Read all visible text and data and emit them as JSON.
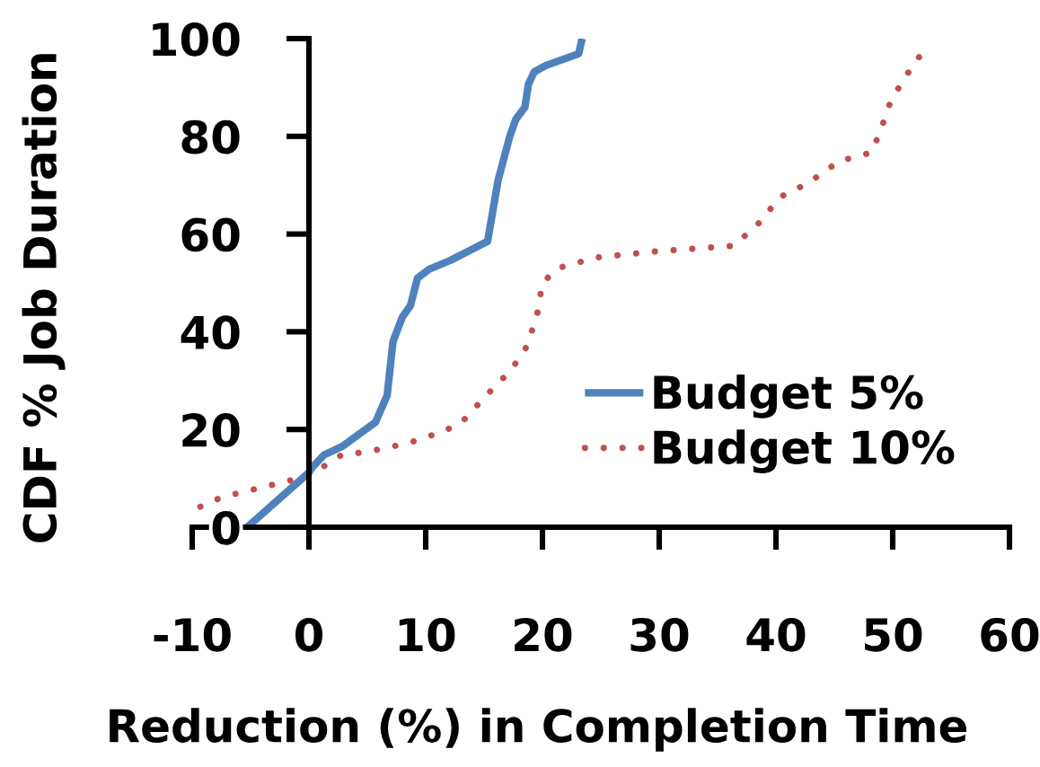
{
  "chart_data": {
    "type": "line",
    "xlabel": "Reduction (%) in Completion Time",
    "ylabel": "CDF % Job Duration",
    "series": [
      {
        "name": "Budget 5%",
        "color": "#4f81bd",
        "line_style": "solid",
        "x": [
          -5.3,
          0,
          0.3,
          1.3,
          2.9,
          5.7,
          6.7,
          7.2,
          8.0,
          8.7,
          9.3,
          10.3,
          12.1,
          15.3,
          16.2,
          17.2,
          17.7,
          18.5,
          18.8,
          19.3,
          20.3,
          23.1,
          23.4
        ],
        "values": [
          0,
          11.2,
          12.3,
          14.8,
          16.6,
          21.5,
          27,
          38,
          43,
          45.4,
          51,
          52.8,
          54.6,
          58.5,
          71,
          80,
          83.4,
          86,
          90.7,
          93.2,
          94.5,
          96.9,
          100
        ]
      },
      {
        "name": "Budget 10%",
        "color": "#c0504d",
        "line_style": "dotted",
        "x": [
          -9.3,
          -7.4,
          -4.3,
          0,
          2.8,
          4.9,
          8.5,
          11.6,
          13.1,
          15.2,
          17.2,
          18.5,
          19.5,
          20,
          21.3,
          24.6,
          29.5,
          36.4,
          38.7,
          40.3,
          42.8,
          45.4,
          48.2,
          49,
          49.8,
          51,
          52.6
        ],
        "values": [
          4.2,
          6.2,
          8,
          10.5,
          14.8,
          15.4,
          17.2,
          19.7,
          21.5,
          27,
          31.9,
          36.2,
          42.9,
          50,
          53,
          55.2,
          56.4,
          57.6,
          62.6,
          67.5,
          70.5,
          74.9,
          76.7,
          81.5,
          87,
          91.9,
          97.4
        ]
      }
    ],
    "xlim": [
      -10,
      60
    ],
    "xticks": [
      -10,
      0,
      10,
      20,
      30,
      40,
      50,
      60
    ],
    "ylim": [
      0,
      100
    ],
    "yticks": [
      0,
      20,
      40,
      60,
      80,
      100
    ],
    "legend": "lower right"
  }
}
